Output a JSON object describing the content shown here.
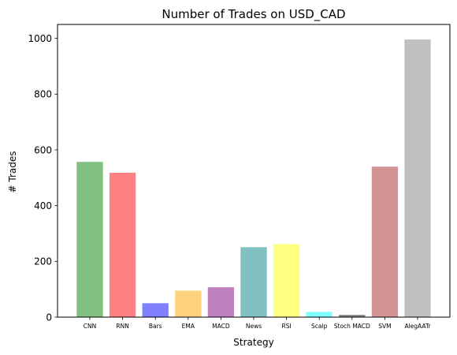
{
  "chart_data": {
    "type": "bar",
    "title": "Number of Trades on USD_CAD",
    "xlabel": "Strategy",
    "ylabel": "# Trades",
    "categories": [
      "CNN",
      "RNN",
      "Bars",
      "EMA",
      "MACD",
      "News",
      "RSI",
      "Scalp",
      "Stoch MACD",
      "SVM",
      "AlegAATr"
    ],
    "values": [
      557,
      518,
      50,
      95,
      107,
      251,
      262,
      19,
      8,
      540,
      996
    ],
    "colors": [
      "#80c080",
      "#ff8080",
      "#8080ff",
      "#ffd280",
      "#c080c0",
      "#80c0c0",
      "#ffff80",
      "#80ffff",
      "#808080",
      "#d29494",
      "#c0c0c0"
    ],
    "ylim": [
      0,
      1050
    ],
    "yticks": [
      0,
      200,
      400,
      600,
      800,
      1000
    ],
    "grid": false,
    "legend": "none"
  }
}
